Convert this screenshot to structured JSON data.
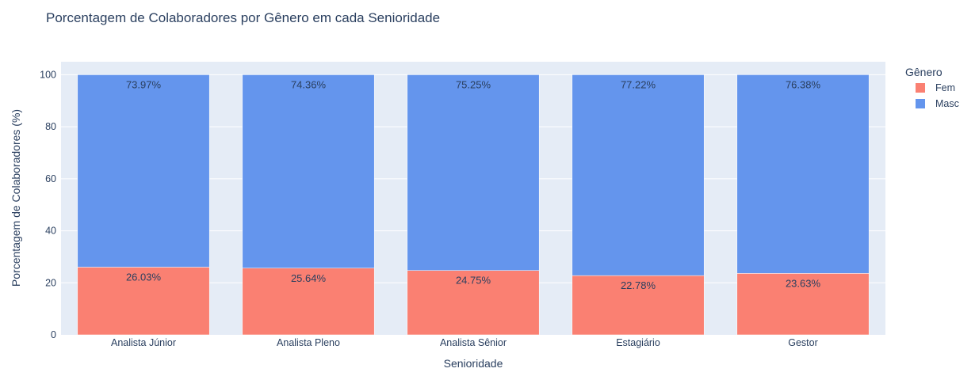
{
  "chart_data": {
    "type": "bar",
    "stacked": true,
    "title": "Porcentagem de Colaboradores por Gênero em cada Senioridade",
    "xlabel": "Senioridade",
    "ylabel": "Porcentagem de Colaboradores (%)",
    "ylim": [
      0,
      105
    ],
    "yticks": [
      0,
      20,
      40,
      60,
      80,
      100
    ],
    "grid": true,
    "legend_position": "right",
    "legend_title": "Gênero",
    "categories": [
      "Analista Júnior",
      "Analista Pleno",
      "Analista Sênior",
      "Estagiário",
      "Gestor"
    ],
    "series": [
      {
        "name": "Fem",
        "color": "#fa8072",
        "values": [
          26.03,
          25.64,
          24.75,
          22.78,
          23.63
        ],
        "labels": [
          "26.03%",
          "25.64%",
          "24.75%",
          "22.78%",
          "23.63%"
        ]
      },
      {
        "name": "Masc",
        "color": "#6495ed",
        "values": [
          73.97,
          74.36,
          75.25,
          77.22,
          76.38
        ],
        "labels": [
          "73.97%",
          "74.36%",
          "75.25%",
          "77.22%",
          "76.38%"
        ]
      }
    ],
    "plot_background": "#e5ecf6",
    "text_color": "#2a3f5f"
  }
}
